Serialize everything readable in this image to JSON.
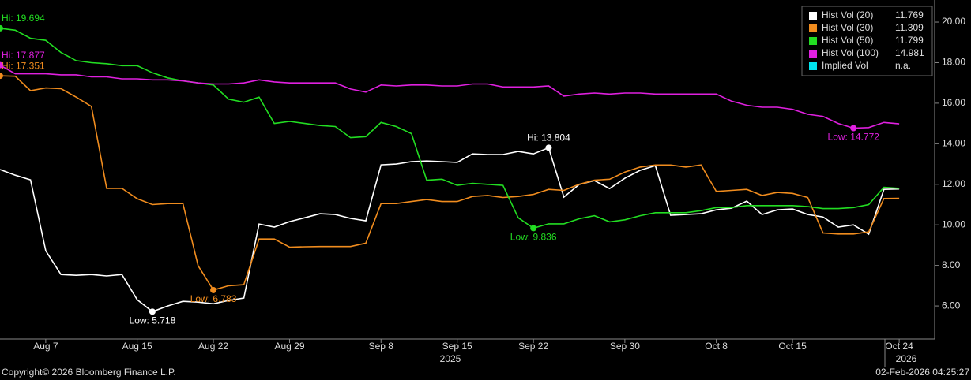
{
  "chart_data": {
    "type": "line",
    "categories": [
      null,
      null,
      null,
      "Aug 7",
      null,
      null,
      null,
      null,
      null,
      "Aug 15",
      null,
      null,
      null,
      null,
      "Aug 22",
      null,
      null,
      null,
      null,
      "Aug 29",
      null,
      null,
      null,
      null,
      null,
      "Sep 8",
      null,
      null,
      null,
      null,
      "Sep 15",
      null,
      null,
      null,
      null,
      "Sep 22",
      null,
      null,
      null,
      null,
      null,
      "Sep 30",
      null,
      null,
      null,
      null,
      null,
      "Oct 8",
      null,
      null,
      null,
      null,
      "Oct 15",
      null,
      null,
      null,
      null,
      null,
      null,
      "Oct 24"
    ],
    "year_labels": [
      "2025",
      "2026"
    ],
    "ylim": [
      4.37,
      21.09
    ],
    "yticks": [
      {
        "value": 6,
        "label": "6.00"
      },
      {
        "value": 8,
        "label": "8.00"
      },
      {
        "value": 10,
        "label": "10.00"
      },
      {
        "value": 12,
        "label": "12.00"
      },
      {
        "value": 14,
        "label": "14.00"
      },
      {
        "value": 16,
        "label": "16.00"
      },
      {
        "value": 18,
        "label": "18.00"
      },
      {
        "value": 20,
        "label": "20.00"
      }
    ],
    "legend": "top-right",
    "series": [
      {
        "name": "Hist Vol (20)",
        "color": "#ffffff",
        "hi_label": "Hi: 13.804",
        "low_label": "Low: 5.718",
        "values": [
          12.73,
          12.45,
          12.22,
          8.72,
          7.55,
          7.51,
          7.55,
          7.48,
          7.55,
          6.31,
          5.718,
          6.0,
          6.23,
          6.19,
          6.11,
          6.27,
          6.39,
          10.04,
          9.89,
          10.16,
          10.35,
          10.55,
          10.51,
          10.32,
          10.2,
          12.96,
          13.0,
          13.12,
          13.15,
          13.12,
          13.08,
          13.5,
          13.47,
          13.47,
          13.62,
          13.5,
          13.804,
          11.37,
          11.99,
          12.18,
          11.79,
          12.3,
          12.69,
          12.92,
          10.47,
          10.51,
          10.55,
          10.74,
          10.82,
          11.17,
          10.51,
          10.74,
          10.78,
          10.51,
          10.39,
          9.89,
          10.0,
          9.54,
          11.75,
          11.769
        ]
      },
      {
        "name": "Hist Vol (30)",
        "color": "#f08c1e",
        "hi_label": "Hi: 17.351",
        "low_label": "Low: 6.783",
        "values": [
          17.351,
          17.33,
          16.62,
          16.75,
          16.72,
          16.3,
          15.84,
          11.8,
          11.8,
          11.29,
          11.0,
          11.05,
          11.05,
          7.98,
          6.783,
          7.0,
          7.05,
          9.3,
          9.3,
          8.9,
          8.92,
          8.93,
          8.93,
          8.93,
          9.1,
          11.05,
          11.05,
          11.15,
          11.25,
          11.15,
          11.15,
          11.4,
          11.45,
          11.35,
          11.4,
          11.5,
          11.75,
          11.7,
          12.0,
          12.2,
          12.25,
          12.6,
          12.85,
          12.95,
          12.95,
          12.85,
          12.95,
          11.65,
          11.7,
          11.75,
          11.45,
          11.6,
          11.55,
          11.35,
          9.6,
          9.55,
          9.55,
          9.65,
          11.3,
          11.309
        ]
      },
      {
        "name": "Hist Vol (50)",
        "color": "#22dd22",
        "hi_label": "Hi: 19.694",
        "low_label": "Low: 9.836",
        "values": [
          19.694,
          19.6,
          19.2,
          19.1,
          18.5,
          18.1,
          18.0,
          17.95,
          17.85,
          17.85,
          17.5,
          17.25,
          17.1,
          17.0,
          16.9,
          16.2,
          16.05,
          16.3,
          15.0,
          15.1,
          15.0,
          14.9,
          14.85,
          14.3,
          14.35,
          15.05,
          14.85,
          14.5,
          12.2,
          12.25,
          11.95,
          12.05,
          12.0,
          11.95,
          10.35,
          9.836,
          10.05,
          10.05,
          10.3,
          10.45,
          10.15,
          10.25,
          10.45,
          10.6,
          10.6,
          10.6,
          10.7,
          10.85,
          10.85,
          10.95,
          10.95,
          10.95,
          10.95,
          10.9,
          10.8,
          10.8,
          10.85,
          11.0,
          11.85,
          11.799
        ]
      },
      {
        "name": "Hist Vol (100)",
        "color": "#e020e0",
        "hi_label": "Hi: 17.877",
        "low_label": "Low: 14.772",
        "values": [
          17.877,
          17.45,
          17.45,
          17.45,
          17.4,
          17.4,
          17.3,
          17.3,
          17.2,
          17.2,
          17.15,
          17.15,
          17.1,
          17.0,
          16.95,
          16.95,
          17.0,
          17.15,
          17.05,
          17.0,
          17.0,
          17.0,
          17.0,
          16.7,
          16.55,
          16.9,
          16.85,
          16.9,
          16.9,
          16.85,
          16.85,
          16.95,
          16.95,
          16.8,
          16.8,
          16.8,
          16.85,
          16.35,
          16.45,
          16.5,
          16.45,
          16.5,
          16.5,
          16.45,
          16.45,
          16.45,
          16.45,
          16.45,
          16.1,
          15.9,
          15.8,
          15.8,
          15.7,
          15.45,
          15.35,
          15.0,
          14.772,
          14.8,
          15.05,
          14.981
        ]
      },
      {
        "name": "Implied Vol",
        "color": "#00e5ee",
        "legend_value": "n.a.",
        "values": [
          null,
          null,
          null,
          null,
          null,
          null,
          null,
          null,
          null,
          null,
          null,
          null,
          null,
          null,
          null,
          null,
          null,
          null,
          null,
          null,
          null,
          null,
          null,
          null,
          null,
          null,
          null,
          null,
          null,
          null,
          null,
          null,
          null,
          null,
          null,
          null,
          null,
          null,
          null,
          null,
          null,
          null,
          null,
          null,
          null,
          null,
          null,
          null,
          null,
          null,
          null,
          null,
          null,
          null,
          null,
          null,
          null,
          null,
          null,
          null
        ]
      }
    ],
    "footer_left": "Copyright© 2026 Bloomberg Finance L.P.",
    "footer_right": "02-Feb-2026 04:25:27"
  }
}
